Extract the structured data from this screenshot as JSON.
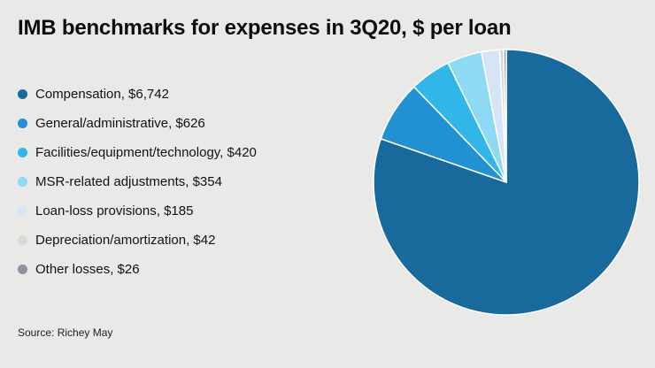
{
  "chart_data": {
    "type": "pie",
    "title": "IMB benchmarks for expenses in 3Q20, $ per loan",
    "source": "Source: Richey May",
    "legend_position": "left",
    "start_angle_deg": 0,
    "direction": "clockwise",
    "total": 8395,
    "slices": [
      {
        "label": "Compensation",
        "value": 6742,
        "display": "Compensation, $6,742",
        "color": "#186a9c"
      },
      {
        "label": "General/administrative",
        "value": 626,
        "display": "General/administrative, $626",
        "color": "#2191d4"
      },
      {
        "label": "Facilities/equipment/technology",
        "value": 420,
        "display": "Facilities/equipment/technology, $420",
        "color": "#30b6e9"
      },
      {
        "label": "MSR-related adjustments",
        "value": 354,
        "display": "MSR-related adjustments, $354",
        "color": "#8ed9f3"
      },
      {
        "label": "Loan-loss provisions",
        "value": 185,
        "display": "Loan-loss provisions, $185",
        "color": "#d6e4f7"
      },
      {
        "label": "Depreciation/amortization",
        "value": 42,
        "display": "Depreciation/amortization, $42",
        "color": "#d8d8d5"
      },
      {
        "label": "Other losses",
        "value": 26,
        "display": "Other losses, $26",
        "color": "#8f90a0"
      }
    ],
    "style": {
      "background": "#e9e9e8",
      "slice_stroke": "#ffffff"
    }
  }
}
